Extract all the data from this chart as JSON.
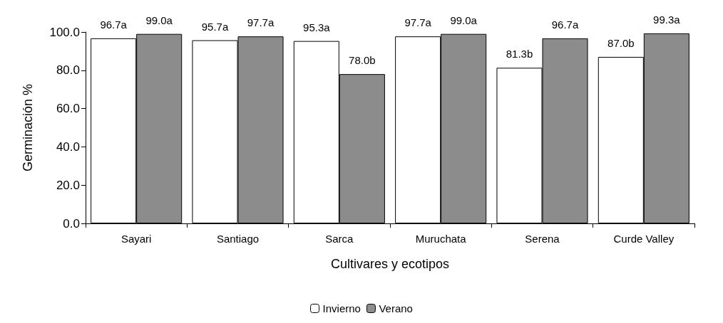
{
  "chart_data": {
    "type": "bar",
    "xlabel": "Cultivares y ecotipos",
    "ylabel": "Germinación %",
    "categories": [
      "Sayari",
      "Santiago",
      "Sarca",
      "Muruchata",
      "Serena",
      "Curde Valley"
    ],
    "series": [
      {
        "name": "Invierno",
        "color": "#ffffff",
        "values": [
          96.7,
          95.7,
          95.3,
          97.7,
          81.3,
          87.0
        ],
        "value_labels": [
          "96.7a",
          "95.7a",
          "95.3a",
          "97.7a",
          "81.3b",
          "87.0b"
        ]
      },
      {
        "name": "Verano",
        "color": "#8c8c8c",
        "values": [
          99.0,
          97.7,
          78.0,
          99.0,
          96.7,
          99.3
        ],
        "value_labels": [
          "99.0a",
          "97.7a",
          "78.0b",
          "99.0a",
          "96.7a",
          "99.3a"
        ]
      }
    ],
    "ylim": [
      0,
      100
    ],
    "yticks": [
      {
        "value": 0,
        "label": "0.0"
      },
      {
        "value": 20,
        "label": "20.0"
      },
      {
        "value": 40,
        "label": "40.0"
      },
      {
        "value": 60,
        "label": "60.0"
      },
      {
        "value": 80,
        "label": "80.0"
      },
      {
        "value": 100,
        "label": "100.0"
      }
    ],
    "grid": false,
    "legend": "bottom"
  }
}
